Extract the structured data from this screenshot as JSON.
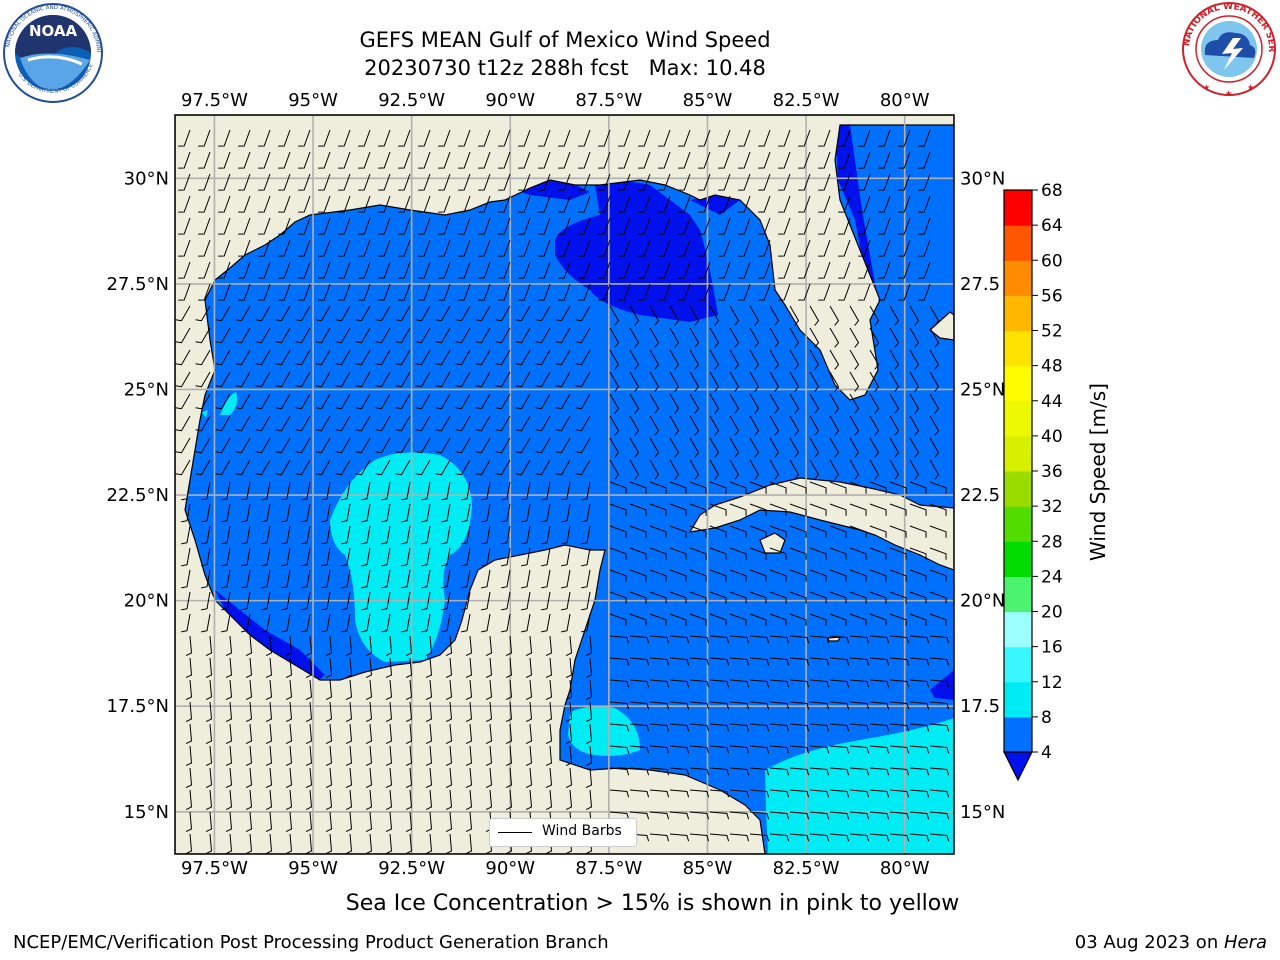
{
  "header": {
    "title_line1": "GEFS MEAN Gulf of Mexico Wind Speed",
    "title_line2": "20230730 t12z 288h fcst   Max: 10.48"
  },
  "logos": {
    "left": {
      "icon": "noaa-logo",
      "text": "NOAA",
      "ring_text": "NATIONAL OCEANIC AND ATMOSPHERIC ADMINISTRATION",
      "ring_text_bottom": "U.S. DEPARTMENT OF COMMERCE"
    },
    "right": {
      "icon": "nws-logo",
      "ring_text": "NATIONAL WEATHER SERVICE"
    }
  },
  "map": {
    "projection": "PlateCarree",
    "lon_range": [
      -98.5,
      -78.75
    ],
    "lat_range": [
      14,
      31.5
    ],
    "lon_ticks": [
      "97.5°W",
      "95°W",
      "92.5°W",
      "90°W",
      "87.5°W",
      "85°W",
      "82.5°W",
      "80°W"
    ],
    "lat_ticks": [
      "15°N",
      "17.5°N",
      "20°N",
      "22.5°N",
      "25°N",
      "27.5°N",
      "30°N"
    ],
    "lat_ticks_right": [
      "15°N",
      "17.5",
      "20°N",
      "22.5",
      "25°N",
      "27.5",
      "30°N"
    ],
    "land_color": "#efeddc",
    "grid_color": "#b0b0b0"
  },
  "colorbar": {
    "label": "Wind Speed [m/s]",
    "ticks": [
      "4",
      "8",
      "12",
      "16",
      "20",
      "24",
      "28",
      "32",
      "36",
      "40",
      "44",
      "48",
      "52",
      "56",
      "60",
      "64",
      "68"
    ],
    "colors": [
      "#0071ff",
      "#00ecf4",
      "#3af7ff",
      "#9bffff",
      "#4bf36e",
      "#00dc00",
      "#52dc00",
      "#9adc00",
      "#d6f000",
      "#ecf900",
      "#fffb00",
      "#ffe200",
      "#ffb700",
      "#ff8c00",
      "#ff5600",
      "#ff2400",
      "#ff0000"
    ],
    "extend_color": "#0011ee"
  },
  "legend": {
    "label": "Wind Barbs"
  },
  "caption": "Sea Ice Concentration > 15% is shown in pink to yellow",
  "footer": {
    "left": "NCEP/EMC/Verification Post Processing Product Generation Branch",
    "right_date": "03 Aug 2023 on ",
    "right_machine": "Hera"
  }
}
